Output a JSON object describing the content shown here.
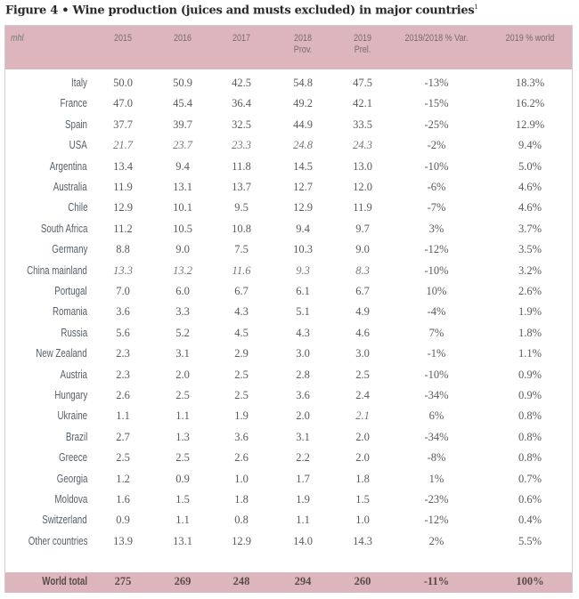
{
  "title": "Figure 4 • Wine production (juices and musts excluded) in major countries",
  "title_footnote": "1",
  "colors": {
    "header_bg": "#dcb6bc",
    "total_bg": "#dcb6bc"
  },
  "table": {
    "unit_label": "mhl",
    "columns": [
      "2015",
      "2016",
      "2017",
      "2018\nProv.",
      "2019\nPrel.",
      "2019/2018 % Var.",
      "2019 % world"
    ],
    "rows": [
      {
        "country": "Italy",
        "values": [
          "50.0",
          "50.9",
          "42.5",
          "54.8",
          "47.5",
          "-13%",
          "18.3%"
        ]
      },
      {
        "country": "France",
        "values": [
          "47.0",
          "45.4",
          "36.4",
          "49.2",
          "42.1",
          "-15%",
          "16.2%"
        ]
      },
      {
        "country": "Spain",
        "values": [
          "37.7",
          "39.7",
          "32.5",
          "44.9",
          "33.5",
          "-25%",
          "12.9%"
        ]
      },
      {
        "country": "USA",
        "values": [
          "21.7",
          "23.7",
          "23.3",
          "24.8",
          "24.3",
          "-2%",
          "9.4%"
        ],
        "italic": [
          0,
          1,
          2,
          3,
          4
        ]
      },
      {
        "country": "Argentina",
        "values": [
          "13.4",
          "9.4",
          "11.8",
          "14.5",
          "13.0",
          "-10%",
          "5.0%"
        ]
      },
      {
        "country": "Australia",
        "values": [
          "11.9",
          "13.1",
          "13.7",
          "12.7",
          "12.0",
          "-6%",
          "4.6%"
        ]
      },
      {
        "country": "Chile",
        "values": [
          "12.9",
          "10.1",
          "9.5",
          "12.9",
          "11.9",
          "-7%",
          "4.6%"
        ]
      },
      {
        "country": "South Africa",
        "values": [
          "11.2",
          "10.5",
          "10.8",
          "9.4",
          "9.7",
          "3%",
          "3.7%"
        ]
      },
      {
        "country": "Germany",
        "values": [
          "8.8",
          "9.0",
          "7.5",
          "10.3",
          "9.0",
          "-12%",
          "3.5%"
        ]
      },
      {
        "country": "China mainland",
        "values": [
          "13.3",
          "13.2",
          "11.6",
          "9.3",
          "8.3",
          "-10%",
          "3.2%"
        ],
        "italic": [
          0,
          1,
          2,
          3,
          4
        ]
      },
      {
        "country": "Portugal",
        "values": [
          "7.0",
          "6.0",
          "6.7",
          "6.1",
          "6.7",
          "10%",
          "2.6%"
        ]
      },
      {
        "country": "Romania",
        "values": [
          "3.6",
          "3.3",
          "4.3",
          "5.1",
          "4.9",
          "-4%",
          "1.9%"
        ]
      },
      {
        "country": "Russia",
        "values": [
          "5.6",
          "5.2",
          "4.5",
          "4.3",
          "4.6",
          "7%",
          "1.8%"
        ]
      },
      {
        "country": "New Zealand",
        "values": [
          "2.3",
          "3.1",
          "2.9",
          "3.0",
          "3.0",
          "-1%",
          "1.1%"
        ]
      },
      {
        "country": "Austria",
        "values": [
          "2.3",
          "2.0",
          "2.5",
          "2.8",
          "2.5",
          "-10%",
          "0.9%"
        ]
      },
      {
        "country": "Hungary",
        "values": [
          "2.6",
          "2.5",
          "2.5",
          "3.6",
          "2.4",
          "-34%",
          "0.9%"
        ]
      },
      {
        "country": "Ukraine",
        "values": [
          "1.1",
          "1.1",
          "1.9",
          "2.0",
          "2.1",
          "6%",
          "0.8%"
        ],
        "italic": [
          4
        ]
      },
      {
        "country": "Brazil",
        "values": [
          "2.7",
          "1.3",
          "3.6",
          "3.1",
          "2.0",
          "-34%",
          "0.8%"
        ]
      },
      {
        "country": "Greece",
        "values": [
          "2.5",
          "2.5",
          "2.6",
          "2.2",
          "2.0",
          "-8%",
          "0.8%"
        ]
      },
      {
        "country": "Georgia",
        "values": [
          "1.2",
          "0.9",
          "1.0",
          "1.7",
          "1.8",
          "1%",
          "0.7%"
        ]
      },
      {
        "country": "Moldova",
        "values": [
          "1.6",
          "1.5",
          "1.8",
          "1.9",
          "1.5",
          "-23%",
          "0.6%"
        ]
      },
      {
        "country": "Switzerland",
        "values": [
          "0.9",
          "1.1",
          "0.8",
          "1.1",
          "1.0",
          "-12%",
          "0.4%"
        ]
      },
      {
        "country": "Other countries",
        "values": [
          "13.9",
          "13.1",
          "12.9",
          "14.0",
          "14.3",
          "2%",
          "5.5%"
        ]
      }
    ],
    "total": {
      "country": "World total",
      "values": [
        "275",
        "269",
        "248",
        "294",
        "260",
        "-11%",
        "100%"
      ]
    }
  }
}
